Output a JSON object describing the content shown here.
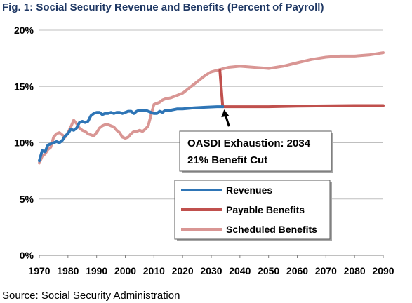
{
  "figure": {
    "title": "Fig. 1: Social Security Revenue and Benefits (Percent of Payroll)",
    "source": "Source: Social Security Administration"
  },
  "chart_data": {
    "type": "line",
    "title": "Fig. 1: Social Security Revenue and Benefits (Percent of Payroll)",
    "xlabel": "",
    "ylabel": "",
    "xlim": [
      1970,
      2090
    ],
    "ylim": [
      0,
      20
    ],
    "x_ticks": [
      "1970",
      "1980",
      "1990",
      "2000",
      "2010",
      "2020",
      "2030",
      "2040",
      "2050",
      "2060",
      "2070",
      "2080",
      "2090"
    ],
    "y_ticks": [
      "0%",
      "5%",
      "10%",
      "15%",
      "20%"
    ],
    "grid": "horizontal",
    "legend_position": "lower-center",
    "series": [
      {
        "name": "Revenues",
        "color": "#2e75b6",
        "points": [
          [
            1970,
            8.4
          ],
          [
            1971,
            9.3
          ],
          [
            1972,
            9.2
          ],
          [
            1973,
            9.8
          ],
          [
            1974,
            9.9
          ],
          [
            1975,
            10.0
          ],
          [
            1976,
            10.1
          ],
          [
            1977,
            10.0
          ],
          [
            1978,
            10.2
          ],
          [
            1979,
            10.6
          ],
          [
            1980,
            10.8
          ],
          [
            1981,
            11.2
          ],
          [
            1982,
            11.1
          ],
          [
            1983,
            11.3
          ],
          [
            1984,
            11.8
          ],
          [
            1985,
            11.9
          ],
          [
            1986,
            11.8
          ],
          [
            1987,
            11.9
          ],
          [
            1988,
            12.4
          ],
          [
            1989,
            12.6
          ],
          [
            1990,
            12.7
          ],
          [
            1991,
            12.7
          ],
          [
            1992,
            12.5
          ],
          [
            1993,
            12.6
          ],
          [
            1994,
            12.6
          ],
          [
            1995,
            12.7
          ],
          [
            1996,
            12.6
          ],
          [
            1997,
            12.7
          ],
          [
            1998,
            12.7
          ],
          [
            1999,
            12.6
          ],
          [
            2000,
            12.7
          ],
          [
            2001,
            12.8
          ],
          [
            2002,
            12.8
          ],
          [
            2003,
            12.6
          ],
          [
            2004,
            12.8
          ],
          [
            2005,
            12.9
          ],
          [
            2006,
            12.9
          ],
          [
            2007,
            12.9
          ],
          [
            2008,
            12.8
          ],
          [
            2009,
            12.7
          ],
          [
            2010,
            12.6
          ],
          [
            2011,
            12.6
          ],
          [
            2012,
            12.8
          ],
          [
            2013,
            12.7
          ],
          [
            2014,
            12.9
          ],
          [
            2016,
            12.9
          ],
          [
            2018,
            13.0
          ],
          [
            2020,
            13.0
          ],
          [
            2024,
            13.1
          ],
          [
            2028,
            13.15
          ],
          [
            2032,
            13.2
          ],
          [
            2034,
            13.2
          ]
        ]
      },
      {
        "name": "Payable Benefits",
        "color": "#c0504d",
        "points": [
          [
            2033,
            16.4
          ],
          [
            2034,
            13.2
          ],
          [
            2040,
            13.2
          ],
          [
            2050,
            13.2
          ],
          [
            2060,
            13.25
          ],
          [
            2070,
            13.28
          ],
          [
            2080,
            13.3
          ],
          [
            2090,
            13.3
          ]
        ]
      },
      {
        "name": "Scheduled Benefits",
        "color": "#d99694",
        "points": [
          [
            1970,
            8.2
          ],
          [
            1971,
            8.8
          ],
          [
            1972,
            9.0
          ],
          [
            1973,
            9.4
          ],
          [
            1974,
            9.6
          ],
          [
            1975,
            10.5
          ],
          [
            1976,
            10.8
          ],
          [
            1977,
            10.9
          ],
          [
            1978,
            10.7
          ],
          [
            1979,
            10.5
          ],
          [
            1980,
            10.9
          ],
          [
            1981,
            11.4
          ],
          [
            1982,
            12.0
          ],
          [
            1983,
            11.7
          ],
          [
            1984,
            11.3
          ],
          [
            1985,
            11.1
          ],
          [
            1986,
            11.0
          ],
          [
            1987,
            10.8
          ],
          [
            1988,
            10.7
          ],
          [
            1989,
            10.6
          ],
          [
            1990,
            10.9
          ],
          [
            1991,
            11.3
          ],
          [
            1992,
            11.5
          ],
          [
            1993,
            11.6
          ],
          [
            1994,
            11.6
          ],
          [
            1995,
            11.5
          ],
          [
            1996,
            11.4
          ],
          [
            1997,
            11.1
          ],
          [
            1998,
            10.9
          ],
          [
            1999,
            10.5
          ],
          [
            2000,
            10.4
          ],
          [
            2001,
            10.5
          ],
          [
            2002,
            10.8
          ],
          [
            2003,
            11.0
          ],
          [
            2004,
            11.0
          ],
          [
            2005,
            11.1
          ],
          [
            2006,
            11.0
          ],
          [
            2007,
            11.2
          ],
          [
            2008,
            11.5
          ],
          [
            2009,
            12.5
          ],
          [
            2010,
            13.4
          ],
          [
            2011,
            13.5
          ],
          [
            2012,
            13.6
          ],
          [
            2013,
            13.8
          ],
          [
            2014,
            13.9
          ],
          [
            2016,
            14.0
          ],
          [
            2018,
            14.2
          ],
          [
            2020,
            14.4
          ],
          [
            2024,
            15.2
          ],
          [
            2028,
            16.0
          ],
          [
            2030,
            16.3
          ],
          [
            2033,
            16.5
          ],
          [
            2036,
            16.7
          ],
          [
            2040,
            16.8
          ],
          [
            2045,
            16.7
          ],
          [
            2050,
            16.6
          ],
          [
            2055,
            16.8
          ],
          [
            2060,
            17.1
          ],
          [
            2065,
            17.4
          ],
          [
            2070,
            17.6
          ],
          [
            2075,
            17.7
          ],
          [
            2080,
            17.7
          ],
          [
            2085,
            17.8
          ],
          [
            2090,
            18.0
          ]
        ]
      }
    ],
    "annotation": {
      "lines": [
        "OASDI Exhaustion: 2034",
        "21% Benefit Cut"
      ],
      "arrow_to": [
        2034,
        13.2
      ]
    }
  }
}
